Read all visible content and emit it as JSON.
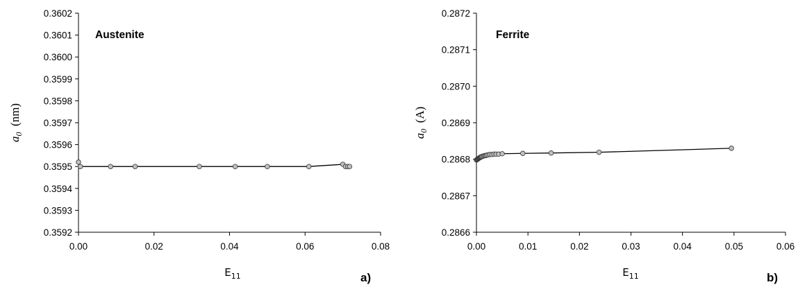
{
  "chart_data": [
    {
      "type": "line",
      "panel_label": "a)",
      "annotation": "Austenite",
      "xlabel_main": "E",
      "xlabel_sub": "11",
      "ylabel_var": "a",
      "ylabel_sub": "0",
      "ylabel_unit": "(nm)",
      "xlim": [
        0,
        0.08
      ],
      "ylim": [
        0.3592,
        0.3602
      ],
      "xticks": [
        "0.00",
        "0.02",
        "0.04",
        "0.06",
        "0.08"
      ],
      "yticks": [
        "0.3592",
        "0.3593",
        "0.3594",
        "0.3595",
        "0.3596",
        "0.3597",
        "0.3598",
        "0.3599",
        "0.3600",
        "0.3601",
        "0.3602"
      ],
      "series": [
        {
          "x": [
            0.0,
            0.0005,
            0.0085,
            0.015,
            0.032,
            0.0415,
            0.05,
            0.061,
            0.07,
            0.0707,
            0.0713,
            0.0718
          ],
          "y": [
            0.35952,
            0.3595,
            0.3595,
            0.3595,
            0.3595,
            0.3595,
            0.3595,
            0.3595,
            0.35951,
            0.3595,
            0.3595,
            0.3595
          ]
        }
      ],
      "grid": false,
      "marker_color": "#c0c0c0",
      "line_color": "#000000"
    },
    {
      "type": "line",
      "panel_label": "b)",
      "annotation": "Ferrite",
      "xlabel_main": "E",
      "xlabel_sub": "11",
      "ylabel_var": "a",
      "ylabel_sub": "0",
      "ylabel_unit": "(A)",
      "xlim": [
        0,
        0.06
      ],
      "ylim": [
        0.2866,
        0.2872
      ],
      "xticks": [
        "0.00",
        "0.01",
        "0.02",
        "0.03",
        "0.04",
        "0.05",
        "0.06"
      ],
      "yticks": [
        "0.2866",
        "0.2867",
        "0.2868",
        "0.2869",
        "0.2870",
        "0.2871",
        "0.2872"
      ],
      "series": [
        {
          "x": [
            0.0,
            0.0001,
            0.0002,
            0.0003,
            0.0004,
            0.0005,
            0.0006,
            0.0007,
            0.0008,
            0.0009,
            0.001,
            0.0012,
            0.0014,
            0.0016,
            0.0018,
            0.002,
            0.0023,
            0.0026,
            0.003,
            0.0034,
            0.0038,
            0.0043,
            0.005,
            0.009,
            0.0145,
            0.0238,
            0.0495
          ],
          "y": [
            0.286798,
            0.286799,
            0.2868,
            0.286801,
            0.286802,
            0.286803,
            0.286804,
            0.286805,
            0.286806,
            0.286806,
            0.286807,
            0.286808,
            0.286809,
            0.28681,
            0.28681,
            0.286811,
            0.286812,
            0.286813,
            0.286813,
            0.286814,
            0.286814,
            0.286814,
            0.286815,
            0.286816,
            0.286817,
            0.286819,
            0.28683
          ]
        }
      ],
      "grid": false,
      "marker_color": "#c0c0c0",
      "line_color": "#000000"
    }
  ]
}
